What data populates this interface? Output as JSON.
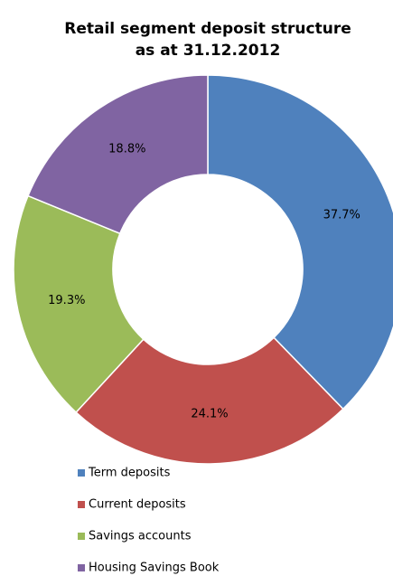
{
  "chart_data": {
    "type": "donut",
    "title": [
      "Retail segment deposit structure",
      "as at 31.12.2012"
    ],
    "categories": [
      "Term deposits",
      "Current deposits",
      "Savings accounts",
      "Housing Savings Book"
    ],
    "values": [
      37.7,
      24.1,
      19.3,
      18.8
    ],
    "value_labels": [
      "37.7%",
      "24.1%",
      "19.3%",
      "18.8%"
    ],
    "colors": [
      "#4f81bd",
      "#c0504d",
      "#9bbb59",
      "#8064a2"
    ],
    "legend": "bottom"
  }
}
